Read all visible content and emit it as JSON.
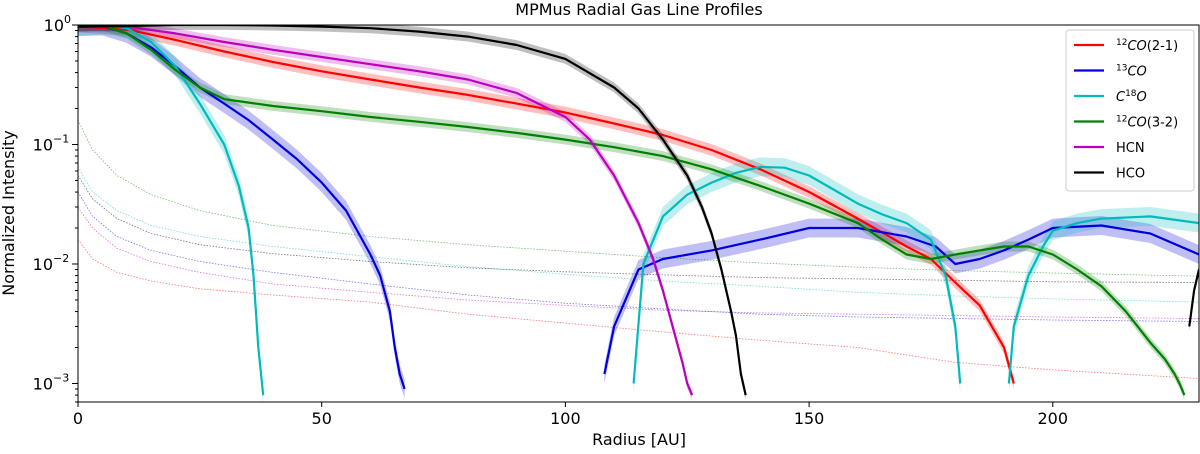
{
  "chart_data": {
    "type": "line",
    "title": "MPMus Radial Gas Line Profiles",
    "xlabel": "Radius [AU]",
    "ylabel": "Normalized Intensity",
    "xlim": [
      0,
      230
    ],
    "ylim": [
      0.0007,
      1.0
    ],
    "yscale": "log",
    "grid": false,
    "legend_position": "top-right",
    "x_ticks": [
      0,
      50,
      100,
      150,
      200
    ],
    "x_tick_labels": [
      "0",
      "50",
      "100",
      "150",
      "200"
    ],
    "y_ticks": [
      0.001,
      0.01,
      0.1,
      1
    ],
    "y_tick_labels": [
      "10",
      "10",
      "10",
      "10"
    ],
    "y_tick_exponents": [
      "−3",
      "−2",
      "−1",
      "0"
    ],
    "series": [
      {
        "legend_sup": "12",
        "legend_main": "CO",
        "legend_suffix": "(2-1)",
        "legend_prefix": "",
        "color": "#ff0000",
        "x": [
          0,
          10,
          20,
          30,
          40,
          50,
          60,
          70,
          80,
          90,
          100,
          110,
          120,
          130,
          140,
          150,
          160,
          170,
          175,
          180,
          185,
          190,
          192
        ],
        "y": [
          0.97,
          0.92,
          0.75,
          0.6,
          0.49,
          0.41,
          0.35,
          0.3,
          0.26,
          0.22,
          0.185,
          0.15,
          0.12,
          0.09,
          0.062,
          0.04,
          0.024,
          0.014,
          0.011,
          0.007,
          0.0045,
          0.002,
          0.001
        ],
        "band": 0.12,
        "noise_x": [
          0,
          3,
          8,
          15,
          25,
          40,
          60,
          80,
          100,
          120,
          140,
          160,
          180,
          200,
          230
        ],
        "noise_y": [
          0.016,
          0.011,
          0.0085,
          0.0072,
          0.0062,
          0.0055,
          0.0048,
          0.0038,
          0.0032,
          0.0027,
          0.0023,
          0.002,
          0.0015,
          0.0013,
          0.0011
        ]
      },
      {
        "legend_sup": "13",
        "legend_main": "CO",
        "legend_suffix": "",
        "legend_prefix": "",
        "color": "#0000dd",
        "x": [
          0,
          5,
          10,
          15,
          20,
          25,
          30,
          35,
          40,
          45,
          50,
          55,
          60,
          62,
          64,
          65,
          66,
          67
        ],
        "y": [
          0.97,
          0.98,
          0.85,
          0.65,
          0.45,
          0.3,
          0.22,
          0.16,
          0.11,
          0.075,
          0.048,
          0.028,
          0.012,
          0.008,
          0.004,
          0.002,
          0.0012,
          0.0009
        ],
        "x2": [
          108,
          110,
          115,
          120,
          130,
          140,
          150,
          160,
          170,
          176,
          180,
          185,
          190,
          195,
          200,
          210,
          220,
          230
        ],
        "y2": [
          0.0012,
          0.003,
          0.009,
          0.011,
          0.013,
          0.016,
          0.02,
          0.02,
          0.017,
          0.014,
          0.01,
          0.011,
          0.013,
          0.016,
          0.02,
          0.021,
          0.018,
          0.012
        ],
        "band": 0.2,
        "noise_x": [
          0,
          3,
          8,
          15,
          25,
          40,
          60,
          80,
          100,
          120,
          140,
          160,
          180,
          200,
          230
        ],
        "noise_y": [
          0.04,
          0.025,
          0.017,
          0.013,
          0.0105,
          0.0085,
          0.0068,
          0.0055,
          0.0047,
          0.0042,
          0.0038,
          0.0036,
          0.0035,
          0.0034,
          0.0033
        ]
      },
      {
        "legend_sup": "18",
        "legend_main": "O",
        "legend_suffix": "",
        "legend_prefix": "C",
        "color": "#00bbbb",
        "x": [
          0,
          5,
          10,
          15,
          20,
          25,
          30,
          33,
          35,
          36,
          37,
          38
        ],
        "y": [
          0.97,
          1.0,
          0.94,
          0.72,
          0.45,
          0.22,
          0.1,
          0.045,
          0.02,
          0.008,
          0.002,
          0.0008
        ],
        "x2": [
          114,
          116,
          120,
          125,
          130,
          135,
          140,
          145,
          150,
          155,
          160,
          165,
          170,
          175,
          178,
          180,
          181
        ],
        "y2": [
          0.001,
          0.01,
          0.025,
          0.038,
          0.048,
          0.058,
          0.065,
          0.064,
          0.055,
          0.042,
          0.032,
          0.026,
          0.022,
          0.016,
          0.008,
          0.003,
          0.001
        ],
        "x3": [
          191,
          192,
          195,
          198,
          200,
          205,
          210,
          220,
          230
        ],
        "y3": [
          0.001,
          0.003,
          0.008,
          0.014,
          0.019,
          0.022,
          0.024,
          0.025,
          0.022
        ],
        "band": 0.2,
        "noise_x": [
          0,
          3,
          8,
          15,
          25,
          40,
          60,
          80,
          100,
          120,
          140,
          160,
          180,
          200,
          230
        ],
        "noise_y": [
          0.065,
          0.04,
          0.028,
          0.021,
          0.017,
          0.014,
          0.0115,
          0.0095,
          0.0082,
          0.0072,
          0.0065,
          0.0058,
          0.0054,
          0.0051,
          0.0048
        ]
      },
      {
        "legend_sup": "12",
        "legend_main": "CO",
        "legend_suffix": "(3-2)",
        "legend_prefix": "",
        "color": "#008000",
        "x": [
          0,
          5,
          10,
          15,
          20,
          25,
          30,
          40,
          50,
          60,
          70,
          80,
          90,
          100,
          110,
          120,
          130,
          140,
          150,
          160,
          165,
          170,
          175,
          180,
          185,
          190,
          195,
          200,
          205,
          210,
          215,
          220,
          223,
          225,
          226,
          227
        ],
        "y": [
          0.97,
          0.99,
          0.85,
          0.62,
          0.42,
          0.3,
          0.24,
          0.21,
          0.19,
          0.17,
          0.155,
          0.14,
          0.125,
          0.11,
          0.095,
          0.08,
          0.062,
          0.045,
          0.032,
          0.022,
          0.016,
          0.012,
          0.011,
          0.012,
          0.013,
          0.014,
          0.014,
          0.012,
          0.009,
          0.0065,
          0.004,
          0.0022,
          0.0016,
          0.0012,
          0.001,
          0.0008
        ],
        "band": 0.1,
        "noise_x": [
          0,
          3,
          8,
          15,
          25,
          40,
          60,
          80,
          100,
          120,
          140,
          160,
          180,
          200,
          230
        ],
        "noise_y": [
          0.16,
          0.09,
          0.055,
          0.038,
          0.028,
          0.021,
          0.017,
          0.0145,
          0.0128,
          0.0113,
          0.0102,
          0.0094,
          0.0088,
          0.0084,
          0.0079
        ]
      },
      {
        "legend_sup": "",
        "legend_main": "HCN",
        "legend_suffix": "",
        "legend_prefix": "",
        "color": "#bb00bb",
        "x": [
          0,
          10,
          20,
          30,
          40,
          50,
          60,
          70,
          80,
          90,
          100,
          105,
          110,
          115,
          118,
          120,
          122,
          124,
          125,
          126
        ],
        "y": [
          0.97,
          0.97,
          0.85,
          0.72,
          0.62,
          0.54,
          0.47,
          0.41,
          0.35,
          0.27,
          0.17,
          0.11,
          0.055,
          0.022,
          0.011,
          0.006,
          0.003,
          0.0015,
          0.001,
          0.0008
        ],
        "band": 0.1,
        "noise_x": [
          0,
          3,
          8,
          15,
          25,
          40,
          60,
          80,
          100,
          120,
          140,
          160,
          180,
          200,
          230
        ],
        "noise_y": [
          0.03,
          0.02,
          0.0135,
          0.0105,
          0.0085,
          0.0068,
          0.0058,
          0.005,
          0.0045,
          0.0041,
          0.0039,
          0.0038,
          0.0037,
          0.0036,
          0.0035
        ]
      },
      {
        "legend_sup": "",
        "legend_main": "HCO",
        "legend_suffix": "",
        "legend_prefix": "",
        "color": "#000000",
        "x": [
          0,
          10,
          20,
          30,
          40,
          50,
          60,
          70,
          80,
          90,
          100,
          110,
          115,
          120,
          125,
          128,
          130,
          132,
          134,
          135,
          136,
          137
        ],
        "y": [
          0.97,
          0.98,
          1.0,
          1.0,
          0.99,
          0.97,
          0.94,
          0.88,
          0.8,
          0.68,
          0.52,
          0.3,
          0.2,
          0.11,
          0.055,
          0.03,
          0.018,
          0.009,
          0.004,
          0.0025,
          0.0012,
          0.0008
        ],
        "x2": [
          228,
          229,
          230
        ],
        "y2": [
          0.003,
          0.006,
          0.009
        ],
        "band": 0.1,
        "noise_x": [
          0,
          3,
          8,
          15,
          25,
          40,
          60,
          80,
          100,
          120,
          140,
          160,
          180,
          200,
          230
        ],
        "noise_y": [
          0.055,
          0.035,
          0.024,
          0.018,
          0.0145,
          0.0122,
          0.0105,
          0.0093,
          0.0086,
          0.0081,
          0.0077,
          0.0075,
          0.0073,
          0.0071,
          0.007
        ]
      }
    ]
  }
}
